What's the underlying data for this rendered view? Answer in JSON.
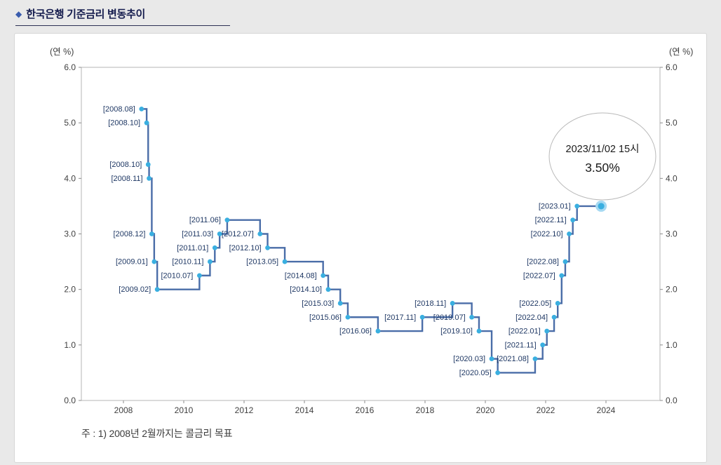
{
  "theme": {
    "background": "#e9e9e9",
    "card_background": "#ffffff",
    "accent": "#3a5dae",
    "title_text": "#141b4d"
  },
  "page": {
    "title_bullet": "◆",
    "title": "한국은행 기준금리 변동추이",
    "footnote": "주 : 1) 2008년 2월까지는 콜금리 목표"
  },
  "chart_data": {
    "type": "line",
    "step": true,
    "title": "한국은행 기준금리 변동추이",
    "unit_label_left": "(연 %)",
    "unit_label_right": "(연 %)",
    "ylim": [
      0.0,
      6.0
    ],
    "yticks": [
      "0.0",
      "1.0",
      "2.0",
      "3.0",
      "4.0",
      "5.0",
      "6.0"
    ],
    "xticks": [
      2008,
      2010,
      2012,
      2014,
      2016,
      2018,
      2020,
      2022,
      2024
    ],
    "points": [
      {
        "label": "[2008.08]",
        "x": 2008.6,
        "y": 5.25
      },
      {
        "label": "[2008.10]",
        "x": 2008.77,
        "y": 5.0
      },
      {
        "label": "[2008.10]",
        "x": 2008.82,
        "y": 4.25
      },
      {
        "label": "[2008.11]",
        "x": 2008.85,
        "y": 4.0
      },
      {
        "label": "[2008.12]",
        "x": 2008.94,
        "y": 3.0
      },
      {
        "label": "[2009.01]",
        "x": 2009.02,
        "y": 2.5
      },
      {
        "label": "[2009.02]",
        "x": 2009.12,
        "y": 2.0
      },
      {
        "label": "[2010.07]",
        "x": 2010.52,
        "y": 2.25
      },
      {
        "label": "[2010.11]",
        "x": 2010.87,
        "y": 2.5
      },
      {
        "label": "[2011.01]",
        "x": 2011.03,
        "y": 2.75
      },
      {
        "label": "[2011.03]",
        "x": 2011.19,
        "y": 3.0
      },
      {
        "label": "[2011.06]",
        "x": 2011.44,
        "y": 3.25
      },
      {
        "label": "[2012.07]",
        "x": 2012.53,
        "y": 3.0
      },
      {
        "label": "[2012.10]",
        "x": 2012.78,
        "y": 2.75
      },
      {
        "label": "[2013.05]",
        "x": 2013.35,
        "y": 2.5
      },
      {
        "label": "[2014.08]",
        "x": 2014.62,
        "y": 2.25
      },
      {
        "label": "[2014.10]",
        "x": 2014.79,
        "y": 2.0
      },
      {
        "label": "[2015.03]",
        "x": 2015.19,
        "y": 1.75
      },
      {
        "label": "[2015.06]",
        "x": 2015.44,
        "y": 1.5
      },
      {
        "label": "[2016.06]",
        "x": 2016.44,
        "y": 1.25
      },
      {
        "label": "[2017.11]",
        "x": 2017.91,
        "y": 1.5
      },
      {
        "label": "[2018.11]",
        "x": 2018.91,
        "y": 1.75
      },
      {
        "label": "[2019.07]",
        "x": 2019.55,
        "y": 1.5
      },
      {
        "label": "[2019.10]",
        "x": 2019.79,
        "y": 1.25
      },
      {
        "label": "[2020.03]",
        "x": 2020.21,
        "y": 0.75
      },
      {
        "label": "[2020.05]",
        "x": 2020.41,
        "y": 0.5
      },
      {
        "label": "[2021.08]",
        "x": 2021.65,
        "y": 0.75
      },
      {
        "label": "[2021.11]",
        "x": 2021.9,
        "y": 1.0
      },
      {
        "label": "[2022.01]",
        "x": 2022.04,
        "y": 1.25
      },
      {
        "label": "[2022.04]",
        "x": 2022.28,
        "y": 1.5
      },
      {
        "label": "[2022.05]",
        "x": 2022.4,
        "y": 1.75
      },
      {
        "label": "[2022.07]",
        "x": 2022.53,
        "y": 2.25
      },
      {
        "label": "[2022.08]",
        "x": 2022.65,
        "y": 2.5
      },
      {
        "label": "[2022.10]",
        "x": 2022.78,
        "y": 3.0
      },
      {
        "label": "[2022.11]",
        "x": 2022.9,
        "y": 3.25
      },
      {
        "label": "[2023.01]",
        "x": 2023.04,
        "y": 3.5
      }
    ],
    "current": {
      "x": 2023.84,
      "y": 3.5
    },
    "callout": {
      "line1": "2023/11/02 15시",
      "line2": "3.50%"
    },
    "colors": {
      "line": "#4a6da8",
      "marker": "#3aafe0",
      "marker_halo": "#a6d9f2",
      "point_label": "#1f3864",
      "axis_text": "#404040",
      "tick": "#8c8c8c",
      "plot_border": "#b5b5b5",
      "callout_border": "#b9b9b9",
      "callout_text": "#1a1a1a"
    }
  }
}
